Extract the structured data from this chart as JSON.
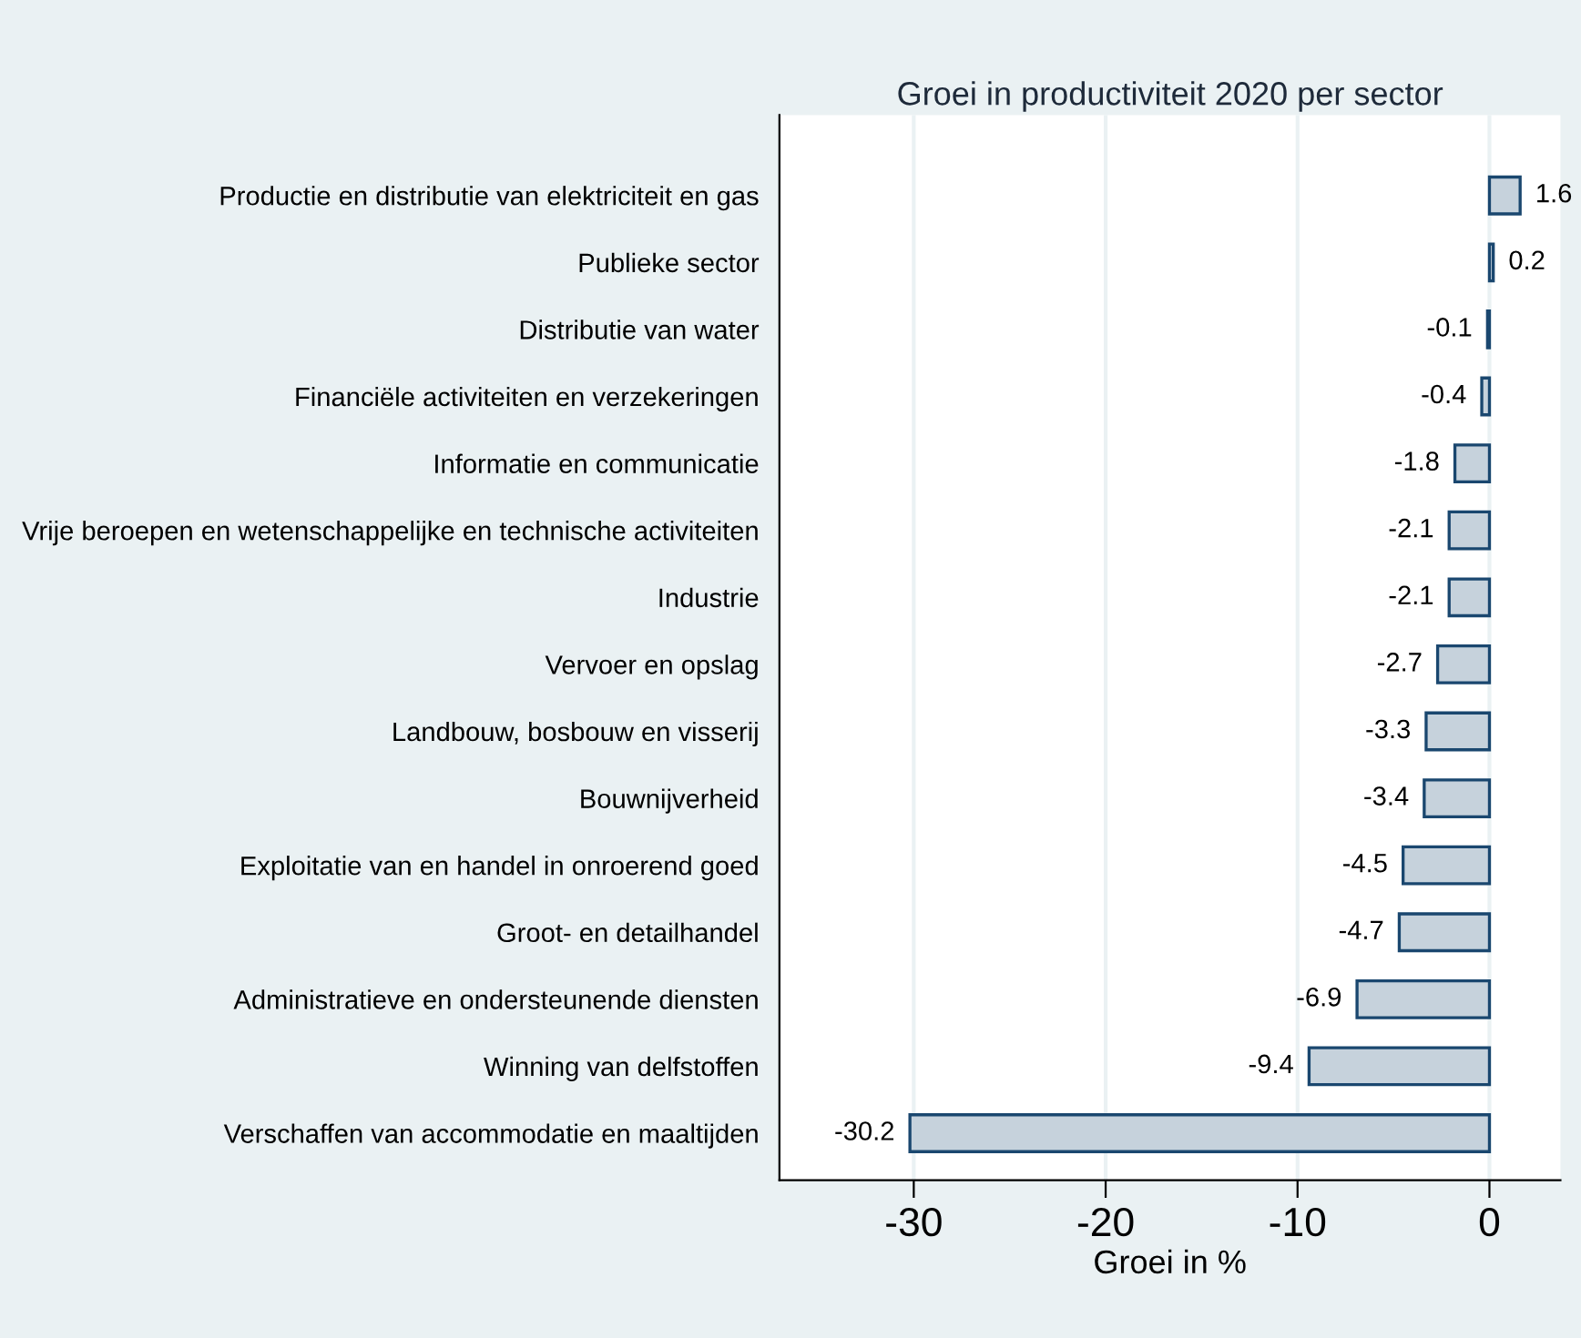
{
  "chart_data": {
    "type": "bar",
    "orientation": "horizontal",
    "title": "Groei in productiviteit 2020 per sector",
    "xlabel": "Groei in %",
    "categories": [
      "Productie en distributie van elektriciteit en gas",
      "Publieke sector",
      "Distributie van water",
      "Financiële activiteiten en verzekeringen",
      "Informatie en communicatie",
      "Vrije beroepen en wetenschappelijke en technische activiteiten",
      "Industrie",
      "Vervoer en opslag",
      "Landbouw, bosbouw en visserij",
      "Bouwnijverheid",
      "Exploitatie van en handel in onroerend goed",
      "Groot- en detailhandel",
      "Administratieve en ondersteunende diensten",
      "Winning van delfstoffen",
      "Verschaffen van accommodatie en maaltijden"
    ],
    "series": [
      {
        "color": "#c6d2dc",
        "values": [
          1.6,
          0.2,
          -0.1,
          -0.4,
          -1.8,
          -2.1,
          -2.1,
          -2.7,
          -3.3,
          -3.4,
          -4.5,
          -4.7,
          -6.9,
          -9.4,
          -30.2
        ]
      }
    ],
    "data_labels": true,
    "xlim": [
      -37,
      3.7
    ],
    "xticks": [
      -30,
      -20,
      -10,
      0
    ],
    "grid": "x",
    "legend": false
  }
}
